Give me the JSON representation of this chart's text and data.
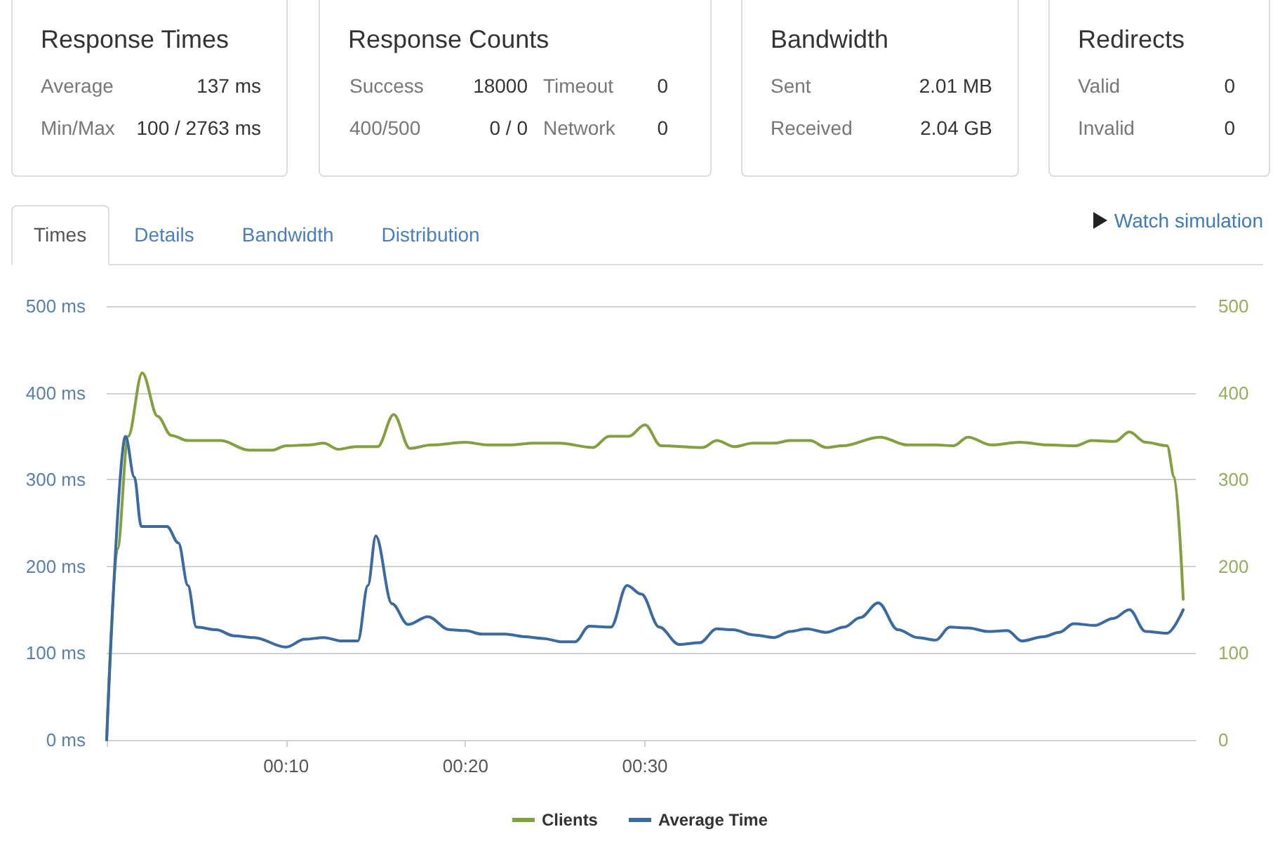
{
  "chart_data": [
    {
      "type": "other",
      "title": "Response Times",
      "annotations": [
        "Average",
        "137 ms",
        "Min/Max",
        "100 / 2763 ms"
      ]
    },
    {
      "type": "other",
      "title": "Response Counts",
      "annotations": [
        "Success",
        "18000",
        "Timeout",
        "0",
        "400/500",
        "0 / 0",
        "Network",
        "0"
      ]
    },
    {
      "type": "other",
      "title": "Bandwidth",
      "annotations": [
        "Sent",
        "2.01 MB",
        "Received",
        "2.04 GB"
      ]
    },
    {
      "type": "other",
      "title": "Redirects",
      "annotations": [
        "Valid",
        "0",
        "Invalid",
        "0"
      ]
    },
    {
      "type": "other",
      "annotations": [
        "Times",
        "Details",
        "Bandwidth",
        "Distribution",
        "Watch simulation"
      ]
    },
    {
      "type": "line",
      "series": [
        {
          "name": "Clients",
          "color": "#82a040",
          "axis": "y2",
          "x": [
            0,
            0.6,
            1.2,
            1.98,
            2.84,
            3.6,
            4.53,
            6.36,
            7.92,
            9.22,
            10,
            11.3,
            12.1,
            12.9,
            13.9,
            15.1,
            16,
            16.9,
            18.1,
            20,
            21.2,
            22.5,
            23.8,
            25.2,
            27.1,
            28,
            29.1,
            30,
            30.9,
            33.2,
            34,
            35,
            36,
            37.2,
            38.1,
            39.2,
            40.1,
            41,
            43.1,
            44.6,
            46.2,
            47.2,
            48,
            49.3,
            50.9,
            52.5,
            54,
            54.9,
            56.2,
            57,
            57.9,
            59.1,
            59.5,
            60
          ],
          "values": [
            0,
            220,
            350,
            423,
            373,
            351,
            345,
            345,
            334,
            334,
            339,
            340,
            342,
            335,
            338,
            338,
            375,
            336,
            340,
            343,
            340,
            340,
            342,
            342,
            337,
            350,
            350,
            363,
            339,
            337,
            345,
            338,
            342,
            342,
            345,
            345,
            337,
            339,
            349,
            340,
            340,
            339,
            349,
            340,
            343,
            340,
            339,
            345,
            344,
            355,
            343,
            339,
            303,
            162
          ]
        },
        {
          "name": "Average Time",
          "color": "#3b6aa0",
          "x": [
            0,
            1.05,
            1.54,
            1.93,
            3.36,
            4.0,
            4.53,
            5.0,
            6.1,
            7.1,
            8.2,
            10,
            11.05,
            12.1,
            13.1,
            14,
            14.56,
            15,
            15.9,
            16.8,
            17.9,
            19.1,
            20,
            20.9,
            22.2,
            23.3,
            24.3,
            25.4,
            26.1,
            26.9,
            28.1,
            29,
            29.8,
            30.8,
            31.9,
            33.05,
            34,
            34.9,
            36.05,
            37.2,
            38.1,
            39,
            40.1,
            41.1,
            42,
            43,
            44.1,
            45.2,
            46.2,
            47,
            48,
            49.1,
            50.2,
            51,
            52.2,
            53.1,
            53.9,
            55.05,
            56.1,
            57,
            57.9,
            59.1,
            60
          ],
          "values": [
            0,
            350,
            303,
            246,
            246,
            227,
            178,
            130,
            127,
            120,
            118,
            107,
            116,
            118,
            114,
            114,
            178,
            235,
            157,
            133,
            142,
            127,
            126,
            122,
            122,
            119,
            117,
            113,
            113,
            131,
            130,
            178,
            168,
            130,
            110,
            112,
            128,
            127,
            121,
            118,
            125,
            128,
            124,
            130,
            141,
            158,
            127,
            118,
            115,
            130,
            129,
            125,
            126,
            114,
            119,
            124,
            134,
            132,
            140,
            150,
            125,
            123,
            150
          ]
        }
      ],
      "xlim": [
        0,
        60.7
      ],
      "xticks": [
        {
          "value": 0,
          "label": null
        },
        {
          "value": 10,
          "label": "00:10"
        },
        {
          "value": 20,
          "label": "00:20"
        },
        {
          "value": 30,
          "label": "00:30"
        }
      ],
      "ylim": [
        0,
        500
      ],
      "yticks": [
        {
          "value": 0,
          "label": "0 ms"
        },
        {
          "value": 100,
          "label": "100 ms"
        },
        {
          "value": 200,
          "label": "200 ms"
        },
        {
          "value": 300,
          "label": "300 ms"
        },
        {
          "value": 400,
          "label": "400 ms"
        },
        {
          "value": 500,
          "label": "500 ms"
        }
      ],
      "y2lim": [
        0,
        500
      ],
      "y2ticks": [
        0,
        100,
        200,
        300,
        400,
        500
      ],
      "grid": "y",
      "legend": "bottom",
      "marker": "none",
      "line_style": "solid"
    }
  ]
}
